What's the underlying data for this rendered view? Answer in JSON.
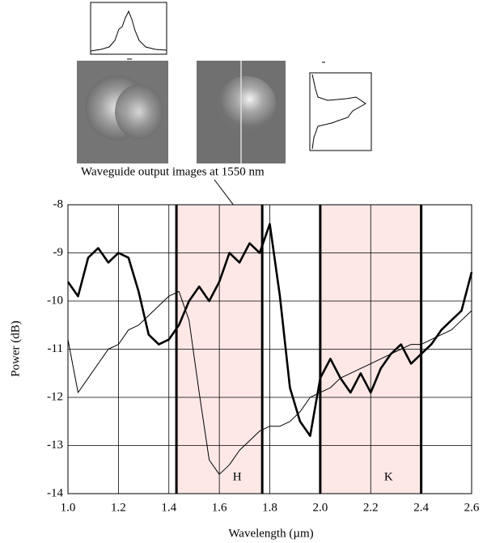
{
  "chart_data": {
    "type": "line",
    "annotation": "Waveguide output images at 1550 nm",
    "x_label": "Wavelength (µm)",
    "y_label": "Power (dB)",
    "xlim": [
      1.0,
      2.6
    ],
    "ylim": [
      -14,
      -8
    ],
    "xticks": [
      {
        "value": 1.0,
        "label": "1.0"
      },
      1.2,
      1.4,
      1.6,
      1.8,
      {
        "value": 2.0,
        "label": "2.0"
      },
      2.2,
      2.4,
      2.6
    ],
    "yticks": [
      -8,
      -9,
      -10,
      -11,
      -12,
      -13,
      -14
    ],
    "grid": true,
    "bands": [
      {
        "label": "H",
        "range": [
          1.43,
          1.77
        ],
        "color": "#fde8e6"
      },
      {
        "label": "K",
        "range": [
          2.0,
          2.4
        ],
        "color": "#fde8e6"
      }
    ],
    "x": [
      1.0,
      1.04,
      1.08,
      1.12,
      1.16,
      1.2,
      1.24,
      1.28,
      1.32,
      1.36,
      1.4,
      1.44,
      1.48,
      1.52,
      1.56,
      1.6,
      1.64,
      1.68,
      1.72,
      1.76,
      1.8,
      1.84,
      1.88,
      1.92,
      1.96,
      2.0,
      2.04,
      2.08,
      2.12,
      2.16,
      2.2,
      2.24,
      2.28,
      2.32,
      2.36,
      2.4,
      2.44,
      2.48,
      2.52,
      2.56,
      2.6
    ],
    "series": [
      {
        "color": "#000000",
        "width": 2.6,
        "values": [
          -9.6,
          -9.9,
          -9.1,
          -8.9,
          -9.2,
          -9.0,
          -9.1,
          -9.8,
          -10.7,
          -10.9,
          -10.8,
          -10.5,
          -10.0,
          -9.7,
          -10.0,
          -9.6,
          -9.0,
          -9.2,
          -8.8,
          -9.0,
          -8.4,
          -9.9,
          -11.8,
          -12.5,
          -12.8,
          -11.6,
          -11.2,
          -11.6,
          -11.9,
          -11.5,
          -11.9,
          -11.4,
          -11.1,
          -10.9,
          -11.3,
          -11.1,
          -10.9,
          -10.6,
          -10.4,
          -10.2,
          -9.4
        ]
      },
      {
        "color": "#000000",
        "width": 1,
        "values": [
          -10.8,
          -11.9,
          -11.6,
          -11.3,
          -11.0,
          -10.9,
          -10.6,
          -10.5,
          -10.3,
          -10.1,
          -9.9,
          -9.8,
          -10.4,
          -11.9,
          -13.3,
          -13.6,
          -13.4,
          -13.1,
          -12.9,
          -12.7,
          -12.6,
          -12.6,
          -12.5,
          -12.3,
          -12.0,
          -11.9,
          -11.8,
          -11.6,
          -11.5,
          -11.4,
          -11.3,
          -11.2,
          -11.1,
          -11.0,
          -10.9,
          -10.9,
          -10.8,
          -10.7,
          -10.6,
          -10.4,
          -10.2
        ]
      }
    ]
  }
}
